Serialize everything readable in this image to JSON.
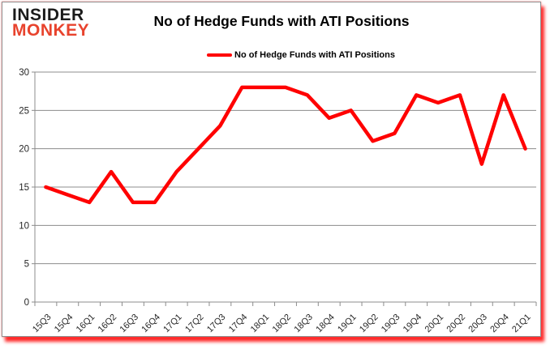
{
  "logo": {
    "line1": "INSIDER",
    "line2": "MONKEY",
    "color1": "#1b1b1b",
    "color2": "#e8432d"
  },
  "header": {
    "title": "No of Hedge Funds with ATI Positions"
  },
  "legend": {
    "label": "No of Hedge Funds with ATI Positions",
    "color": "#ff0000"
  },
  "chart_data": {
    "type": "line",
    "title": "No of Hedge Funds with ATI Positions",
    "categories": [
      "15Q3",
      "15Q4",
      "16Q1",
      "16Q2",
      "16Q3",
      "16Q4",
      "17Q1",
      "17Q2",
      "17Q3",
      "17Q4",
      "18Q1",
      "18Q2",
      "18Q3",
      "18Q4",
      "19Q1",
      "19Q2",
      "19Q3",
      "19Q4",
      "20Q1",
      "20Q2",
      "20Q3",
      "20Q4",
      "21Q1"
    ],
    "values": [
      15,
      14,
      13,
      17,
      13,
      13,
      17,
      20,
      23,
      28,
      28,
      28,
      27,
      24,
      25,
      21,
      22,
      27,
      26,
      27,
      18,
      27,
      20
    ],
    "xlabel": "",
    "ylabel": "",
    "ylim": [
      0,
      30
    ],
    "ytick_step": 5,
    "grid": true,
    "legend_position": "top",
    "line_color": "#ff0000",
    "grid_color": "#8c8c8c",
    "axis_color": "#8c8c8c",
    "tick_label_color": "#262626"
  }
}
